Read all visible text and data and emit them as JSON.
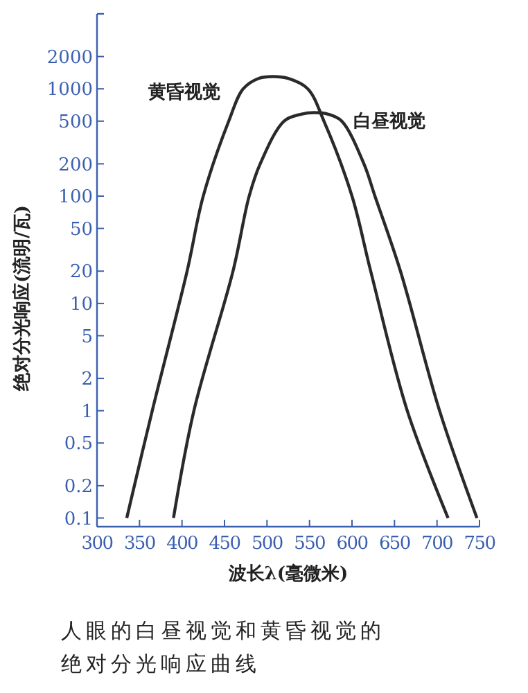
{
  "chart_data": {
    "type": "line",
    "xlabel": "波长λ(毫微米)",
    "ylabel": "绝对分光响应(流明/瓦)",
    "xlim": [
      300,
      750
    ],
    "xticks": [
      300,
      350,
      400,
      450,
      500,
      550,
      600,
      650,
      700,
      750
    ],
    "ylim": [
      0.083,
      5000
    ],
    "yticks": [
      0.1,
      0.2,
      0.5,
      1,
      2,
      5,
      10,
      20,
      50,
      100,
      200,
      500,
      1000,
      2000
    ],
    "log": "y",
    "grid": false,
    "legend": false,
    "marker": "none",
    "line_style": "solid",
    "series": [
      {
        "name": "黄昏视觉",
        "color": "#2a2a2a",
        "x": [
          335,
          365,
          406,
          425,
          455,
          472,
          490,
          507,
          525,
          548,
          567,
          600,
          622,
          665,
          713
        ],
        "values": [
          0.1,
          1,
          20,
          100,
          500,
          1000,
          1250,
          1300,
          1250,
          1000,
          500,
          100,
          20,
          1,
          0.1
        ]
      },
      {
        "name": "白昼视觉",
        "color": "#2a2a2a",
        "x": [
          390,
          414,
          460,
          479,
          492,
          520,
          540,
          556,
          572,
          588,
          614,
          627,
          657,
          703,
          747
        ],
        "values": [
          0.1,
          1,
          20,
          100,
          200,
          500,
          580,
          600,
          580,
          500,
          200,
          100,
          20,
          1,
          0.1
        ]
      }
    ],
    "annotations": [
      "人眼的白昼视觉和黄昏视觉的",
      "绝对分光响应曲线"
    ]
  }
}
